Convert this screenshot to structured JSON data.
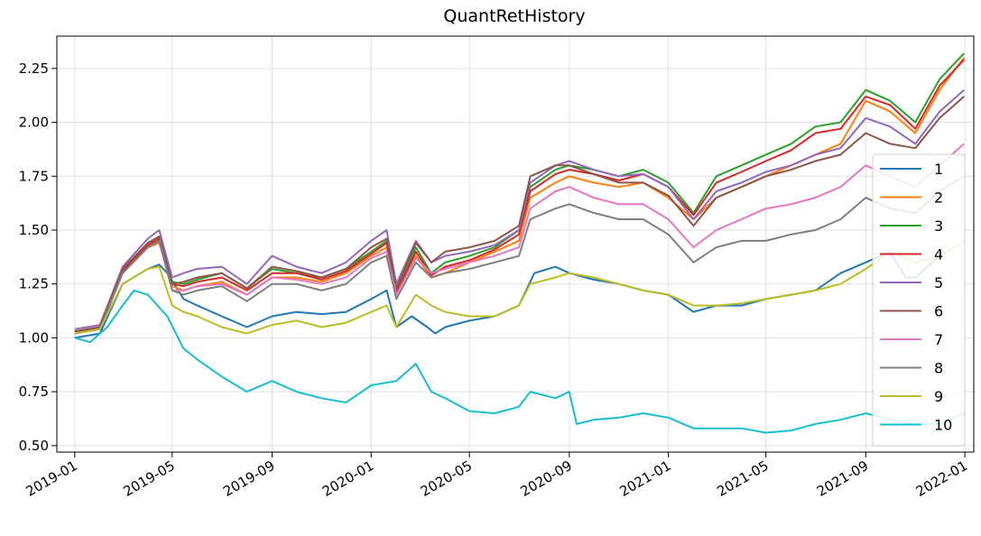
{
  "chart_data": {
    "type": "line",
    "title": "QuantRetHistory",
    "xlabel": "",
    "ylabel": "",
    "x_range": [
      "2018-12-10",
      "2022-01-12"
    ],
    "ylim": [
      0.47,
      2.4
    ],
    "grid": true,
    "legend_position": "right",
    "x_ticks": [
      "2019-01",
      "2019-05",
      "2019-09",
      "2020-01",
      "2020-05",
      "2020-09",
      "2021-01",
      "2021-05",
      "2021-09",
      "2022-01"
    ],
    "y_ticks": [
      "0.50",
      "0.75",
      "1.00",
      "1.25",
      "1.50",
      "1.75",
      "2.00",
      "2.25"
    ],
    "series": [
      {
        "name": "1",
        "color": "#1f77b4",
        "x": [
          "2019-01-01",
          "2019-02-01",
          "2019-03-01",
          "2019-04-01",
          "2019-04-15",
          "2019-04-25",
          "2019-05-15",
          "2019-06-01",
          "2019-07-01",
          "2019-08-01",
          "2019-09-01",
          "2019-10-01",
          "2019-11-01",
          "2019-12-01",
          "2020-01-01",
          "2020-01-20",
          "2020-02-01",
          "2020-02-20",
          "2020-03-10",
          "2020-03-20",
          "2020-04-01",
          "2020-05-01",
          "2020-06-01",
          "2020-07-01",
          "2020-07-20",
          "2020-08-15",
          "2020-09-01",
          "2020-10-01",
          "2020-11-01",
          "2020-12-01",
          "2021-01-01",
          "2021-02-01",
          "2021-03-01",
          "2021-04-01",
          "2021-05-01",
          "2021-06-01",
          "2021-07-01",
          "2021-08-01",
          "2021-09-01",
          "2021-10-01",
          "2021-10-20",
          "2021-11-01",
          "2021-12-01",
          "2021-12-31"
        ],
        "values": [
          1.0,
          1.02,
          1.25,
          1.32,
          1.34,
          1.3,
          1.18,
          1.15,
          1.1,
          1.05,
          1.1,
          1.12,
          1.11,
          1.12,
          1.18,
          1.22,
          1.05,
          1.1,
          1.05,
          1.02,
          1.05,
          1.08,
          1.1,
          1.15,
          1.3,
          1.33,
          1.3,
          1.27,
          1.25,
          1.22,
          1.2,
          1.12,
          1.15,
          1.15,
          1.18,
          1.2,
          1.22,
          1.3,
          1.35,
          1.4,
          1.28,
          1.28,
          1.38,
          1.45
        ]
      },
      {
        "name": "2",
        "color": "#ff7f0e",
        "x": [
          "2019-01-01",
          "2019-02-01",
          "2019-03-01",
          "2019-04-01",
          "2019-04-15",
          "2019-05-01",
          "2019-05-15",
          "2019-06-01",
          "2019-07-01",
          "2019-08-01",
          "2019-09-01",
          "2019-10-01",
          "2019-11-01",
          "2019-12-01",
          "2020-01-01",
          "2020-01-20",
          "2020-02-01",
          "2020-02-25",
          "2020-03-15",
          "2020-04-01",
          "2020-05-01",
          "2020-06-01",
          "2020-07-01",
          "2020-07-15",
          "2020-08-15",
          "2020-09-01",
          "2020-10-01",
          "2020-11-01",
          "2020-12-01",
          "2021-01-01",
          "2021-02-01",
          "2021-03-01",
          "2021-04-01",
          "2021-05-01",
          "2021-06-01",
          "2021-07-01",
          "2021-08-01",
          "2021-09-01",
          "2021-10-01",
          "2021-11-01",
          "2021-12-01",
          "2021-12-31"
        ],
        "values": [
          1.02,
          1.05,
          1.3,
          1.42,
          1.44,
          1.24,
          1.22,
          1.24,
          1.26,
          1.2,
          1.28,
          1.28,
          1.26,
          1.3,
          1.38,
          1.42,
          1.2,
          1.38,
          1.28,
          1.3,
          1.35,
          1.4,
          1.45,
          1.65,
          1.72,
          1.75,
          1.72,
          1.7,
          1.72,
          1.65,
          1.55,
          1.65,
          1.7,
          1.75,
          1.8,
          1.85,
          1.9,
          2.1,
          2.05,
          1.95,
          2.15,
          2.3
        ]
      },
      {
        "name": "3",
        "color": "#2ca02c",
        "x": [
          "2019-01-01",
          "2019-02-01",
          "2019-03-01",
          "2019-04-01",
          "2019-04-15",
          "2019-05-01",
          "2019-05-15",
          "2019-06-01",
          "2019-07-01",
          "2019-08-01",
          "2019-09-01",
          "2019-10-01",
          "2019-11-01",
          "2019-12-01",
          "2020-01-01",
          "2020-01-20",
          "2020-02-01",
          "2020-02-25",
          "2020-03-15",
          "2020-04-01",
          "2020-05-01",
          "2020-06-01",
          "2020-07-01",
          "2020-07-15",
          "2020-08-15",
          "2020-09-01",
          "2020-10-01",
          "2020-11-01",
          "2020-12-01",
          "2021-01-01",
          "2021-02-01",
          "2021-03-01",
          "2021-04-01",
          "2021-05-01",
          "2021-06-01",
          "2021-07-01",
          "2021-08-01",
          "2021-09-01",
          "2021-10-01",
          "2021-11-01",
          "2021-12-01",
          "2021-12-31"
        ],
        "values": [
          1.03,
          1.05,
          1.32,
          1.44,
          1.47,
          1.26,
          1.25,
          1.27,
          1.3,
          1.23,
          1.32,
          1.3,
          1.28,
          1.32,
          1.4,
          1.45,
          1.22,
          1.42,
          1.3,
          1.35,
          1.38,
          1.42,
          1.5,
          1.7,
          1.78,
          1.8,
          1.78,
          1.75,
          1.78,
          1.72,
          1.58,
          1.75,
          1.8,
          1.85,
          1.9,
          1.98,
          2.0,
          2.15,
          2.1,
          2.0,
          2.2,
          2.32
        ]
      },
      {
        "name": "4",
        "color": "#d62728",
        "x": [
          "2019-01-01",
          "2019-02-01",
          "2019-03-01",
          "2019-04-01",
          "2019-04-15",
          "2019-05-01",
          "2019-05-15",
          "2019-06-01",
          "2019-07-01",
          "2019-08-01",
          "2019-09-01",
          "2019-10-01",
          "2019-11-01",
          "2019-12-01",
          "2020-01-01",
          "2020-01-20",
          "2020-02-01",
          "2020-02-25",
          "2020-03-15",
          "2020-04-01",
          "2020-05-01",
          "2020-06-01",
          "2020-07-01",
          "2020-07-15",
          "2020-08-15",
          "2020-09-01",
          "2020-10-01",
          "2020-11-01",
          "2020-12-01",
          "2021-01-01",
          "2021-02-01",
          "2021-03-01",
          "2021-04-01",
          "2021-05-01",
          "2021-06-01",
          "2021-07-01",
          "2021-08-01",
          "2021-09-01",
          "2021-10-01",
          "2021-11-01",
          "2021-12-01",
          "2021-12-31"
        ],
        "values": [
          1.03,
          1.05,
          1.31,
          1.43,
          1.46,
          1.25,
          1.24,
          1.26,
          1.28,
          1.22,
          1.3,
          1.3,
          1.27,
          1.31,
          1.39,
          1.44,
          1.21,
          1.4,
          1.29,
          1.33,
          1.36,
          1.41,
          1.48,
          1.68,
          1.76,
          1.78,
          1.76,
          1.73,
          1.76,
          1.7,
          1.57,
          1.72,
          1.77,
          1.82,
          1.87,
          1.95,
          1.97,
          2.12,
          2.08,
          1.97,
          2.17,
          2.29
        ]
      },
      {
        "name": "5",
        "color": "#9467bd",
        "x": [
          "2019-01-01",
          "2019-02-01",
          "2019-03-01",
          "2019-04-01",
          "2019-04-15",
          "2019-05-01",
          "2019-05-15",
          "2019-06-01",
          "2019-07-01",
          "2019-08-01",
          "2019-09-01",
          "2019-10-01",
          "2019-11-01",
          "2019-12-01",
          "2020-01-01",
          "2020-01-20",
          "2020-02-01",
          "2020-02-25",
          "2020-03-15",
          "2020-04-01",
          "2020-05-01",
          "2020-06-01",
          "2020-07-01",
          "2020-07-15",
          "2020-08-15",
          "2020-09-01",
          "2020-10-01",
          "2020-11-01",
          "2020-12-01",
          "2021-01-01",
          "2021-02-01",
          "2021-03-01",
          "2021-04-01",
          "2021-05-01",
          "2021-06-01",
          "2021-07-01",
          "2021-08-01",
          "2021-09-01",
          "2021-10-01",
          "2021-11-01",
          "2021-12-01",
          "2021-12-31"
        ],
        "values": [
          1.04,
          1.06,
          1.33,
          1.46,
          1.5,
          1.28,
          1.3,
          1.32,
          1.33,
          1.25,
          1.38,
          1.33,
          1.3,
          1.35,
          1.45,
          1.5,
          1.25,
          1.45,
          1.35,
          1.38,
          1.4,
          1.43,
          1.5,
          1.72,
          1.8,
          1.82,
          1.78,
          1.75,
          1.76,
          1.7,
          1.55,
          1.68,
          1.72,
          1.77,
          1.8,
          1.85,
          1.88,
          2.02,
          1.98,
          1.9,
          2.05,
          2.15
        ]
      },
      {
        "name": "6",
        "color": "#8c564b",
        "x": [
          "2019-01-01",
          "2019-02-01",
          "2019-03-01",
          "2019-04-01",
          "2019-04-15",
          "2019-05-01",
          "2019-05-15",
          "2019-06-01",
          "2019-07-01",
          "2019-08-01",
          "2019-09-01",
          "2019-10-01",
          "2019-11-01",
          "2019-12-01",
          "2020-01-01",
          "2020-01-20",
          "2020-02-01",
          "2020-02-25",
          "2020-03-15",
          "2020-04-01",
          "2020-05-01",
          "2020-06-01",
          "2020-07-01",
          "2020-07-15",
          "2020-08-15",
          "2020-09-01",
          "2020-10-01",
          "2020-11-01",
          "2020-12-01",
          "2021-01-01",
          "2021-02-01",
          "2021-03-01",
          "2021-04-01",
          "2021-05-01",
          "2021-06-01",
          "2021-07-01",
          "2021-08-01",
          "2021-09-01",
          "2021-10-01",
          "2021-11-01",
          "2021-12-01",
          "2021-12-31"
        ],
        "values": [
          1.03,
          1.05,
          1.32,
          1.44,
          1.47,
          1.25,
          1.26,
          1.28,
          1.3,
          1.23,
          1.33,
          1.31,
          1.28,
          1.32,
          1.42,
          1.46,
          1.23,
          1.44,
          1.35,
          1.4,
          1.42,
          1.45,
          1.52,
          1.75,
          1.8,
          1.8,
          1.76,
          1.72,
          1.72,
          1.66,
          1.52,
          1.65,
          1.7,
          1.75,
          1.78,
          1.82,
          1.85,
          1.95,
          1.9,
          1.88,
          2.02,
          2.12
        ]
      },
      {
        "name": "7",
        "color": "#e377c2",
        "x": [
          "2019-01-01",
          "2019-02-01",
          "2019-03-01",
          "2019-04-01",
          "2019-04-15",
          "2019-05-01",
          "2019-05-15",
          "2019-06-01",
          "2019-07-01",
          "2019-08-01",
          "2019-09-01",
          "2019-10-01",
          "2019-11-01",
          "2019-12-01",
          "2020-01-01",
          "2020-01-20",
          "2020-02-01",
          "2020-02-25",
          "2020-03-15",
          "2020-04-01",
          "2020-05-01",
          "2020-06-01",
          "2020-07-01",
          "2020-07-15",
          "2020-08-15",
          "2020-09-01",
          "2020-10-01",
          "2020-11-01",
          "2020-12-01",
          "2021-01-01",
          "2021-02-01",
          "2021-03-01",
          "2021-04-01",
          "2021-05-01",
          "2021-06-01",
          "2021-07-01",
          "2021-08-01",
          "2021-09-01",
          "2021-10-01",
          "2021-11-01",
          "2021-12-01",
          "2021-12-31"
        ],
        "values": [
          1.02,
          1.04,
          1.3,
          1.42,
          1.45,
          1.22,
          1.22,
          1.24,
          1.25,
          1.2,
          1.28,
          1.27,
          1.25,
          1.28,
          1.37,
          1.4,
          1.2,
          1.37,
          1.3,
          1.32,
          1.35,
          1.38,
          1.42,
          1.6,
          1.68,
          1.7,
          1.65,
          1.62,
          1.62,
          1.55,
          1.42,
          1.5,
          1.55,
          1.6,
          1.62,
          1.65,
          1.7,
          1.8,
          1.75,
          1.7,
          1.8,
          1.9
        ]
      },
      {
        "name": "8",
        "color": "#7f7f7f",
        "x": [
          "2019-01-01",
          "2019-02-01",
          "2019-03-01",
          "2019-04-01",
          "2019-04-15",
          "2019-05-01",
          "2019-05-15",
          "2019-06-01",
          "2019-07-01",
          "2019-08-01",
          "2019-09-01",
          "2019-10-01",
          "2019-11-01",
          "2019-12-01",
          "2020-01-01",
          "2020-01-20",
          "2020-02-01",
          "2020-02-25",
          "2020-03-15",
          "2020-04-01",
          "2020-05-01",
          "2020-06-01",
          "2020-07-01",
          "2020-07-15",
          "2020-08-15",
          "2020-09-01",
          "2020-10-01",
          "2020-11-01",
          "2020-12-01",
          "2021-01-01",
          "2021-02-01",
          "2021-03-01",
          "2021-04-01",
          "2021-05-01",
          "2021-06-01",
          "2021-07-01",
          "2021-08-01",
          "2021-09-01",
          "2021-10-01",
          "2021-11-01",
          "2021-12-01",
          "2021-12-31"
        ],
        "values": [
          1.02,
          1.04,
          1.3,
          1.42,
          1.45,
          1.22,
          1.2,
          1.22,
          1.24,
          1.17,
          1.25,
          1.25,
          1.22,
          1.25,
          1.35,
          1.38,
          1.18,
          1.35,
          1.28,
          1.3,
          1.32,
          1.35,
          1.38,
          1.55,
          1.6,
          1.62,
          1.58,
          1.55,
          1.55,
          1.48,
          1.35,
          1.42,
          1.45,
          1.45,
          1.48,
          1.5,
          1.55,
          1.65,
          1.6,
          1.58,
          1.68,
          1.75
        ]
      },
      {
        "name": "9",
        "color": "#bcbd22",
        "x": [
          "2019-01-01",
          "2019-02-01",
          "2019-03-01",
          "2019-04-01",
          "2019-04-15",
          "2019-05-01",
          "2019-05-15",
          "2019-06-01",
          "2019-07-01",
          "2019-08-01",
          "2019-09-01",
          "2019-10-01",
          "2019-11-01",
          "2019-12-01",
          "2020-01-01",
          "2020-01-20",
          "2020-02-01",
          "2020-02-25",
          "2020-03-15",
          "2020-04-01",
          "2020-05-01",
          "2020-06-01",
          "2020-07-01",
          "2020-07-15",
          "2020-08-15",
          "2020-09-01",
          "2020-10-01",
          "2020-11-01",
          "2020-12-01",
          "2021-01-01",
          "2021-02-01",
          "2021-03-01",
          "2021-04-01",
          "2021-05-01",
          "2021-06-01",
          "2021-07-01",
          "2021-08-01",
          "2021-09-01",
          "2021-10-01",
          "2021-11-01",
          "2021-12-01",
          "2021-12-31"
        ],
        "values": [
          1.02,
          1.04,
          1.25,
          1.32,
          1.33,
          1.15,
          1.12,
          1.1,
          1.05,
          1.02,
          1.06,
          1.08,
          1.05,
          1.07,
          1.12,
          1.15,
          1.05,
          1.2,
          1.15,
          1.12,
          1.1,
          1.1,
          1.15,
          1.25,
          1.28,
          1.3,
          1.28,
          1.25,
          1.22,
          1.2,
          1.15,
          1.15,
          1.16,
          1.18,
          1.2,
          1.22,
          1.25,
          1.32,
          1.4,
          1.35,
          1.38,
          1.45
        ]
      },
      {
        "name": "10",
        "color": "#17becf",
        "x": [
          "2019-01-01",
          "2019-01-20",
          "2019-02-01",
          "2019-02-10",
          "2019-03-01",
          "2019-03-15",
          "2019-04-01",
          "2019-04-25",
          "2019-05-15",
          "2019-06-01",
          "2019-07-01",
          "2019-08-01",
          "2019-09-01",
          "2019-10-01",
          "2019-11-01",
          "2019-12-01",
          "2020-01-01",
          "2020-02-01",
          "2020-02-25",
          "2020-03-15",
          "2020-04-01",
          "2020-05-01",
          "2020-06-01",
          "2020-07-01",
          "2020-07-15",
          "2020-08-15",
          "2020-09-01",
          "2020-09-10",
          "2020-10-01",
          "2020-11-01",
          "2020-12-01",
          "2021-01-01",
          "2021-02-01",
          "2021-03-01",
          "2021-04-01",
          "2021-05-01",
          "2021-06-01",
          "2021-07-01",
          "2021-08-01",
          "2021-09-01",
          "2021-10-01",
          "2021-11-01",
          "2021-12-01",
          "2021-12-31"
        ],
        "values": [
          1.0,
          0.98,
          1.02,
          1.05,
          1.15,
          1.22,
          1.2,
          1.1,
          0.95,
          0.9,
          0.82,
          0.75,
          0.8,
          0.75,
          0.72,
          0.7,
          0.78,
          0.8,
          0.88,
          0.75,
          0.72,
          0.66,
          0.65,
          0.68,
          0.75,
          0.72,
          0.75,
          0.6,
          0.62,
          0.63,
          0.65,
          0.63,
          0.58,
          0.58,
          0.58,
          0.56,
          0.57,
          0.6,
          0.62,
          0.65,
          0.62,
          0.6,
          0.6,
          0.65
        ]
      }
    ]
  }
}
